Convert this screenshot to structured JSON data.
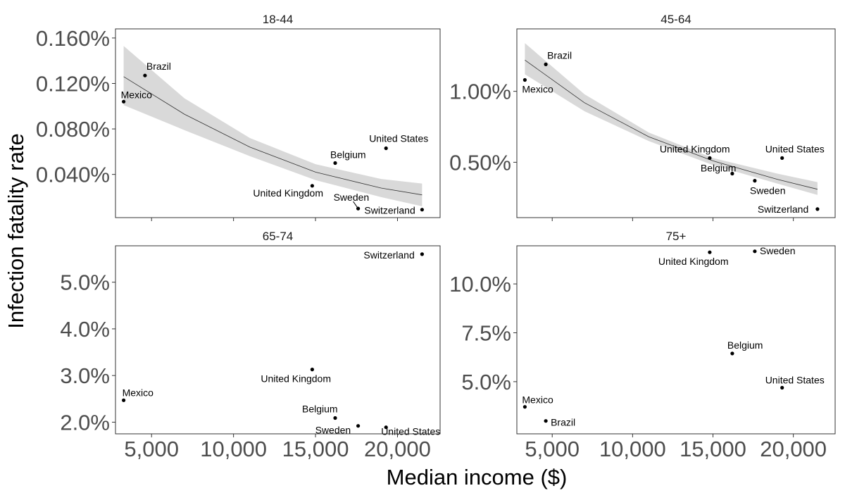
{
  "chart_data": {
    "type": "scatter",
    "xlabel": "Median income ($)",
    "ylabel": "Infection fatality rate",
    "x_ticks": [
      5000,
      10000,
      15000,
      20000
    ],
    "x_tick_labels": [
      "5,000",
      "10,000",
      "15,000",
      "20,000"
    ],
    "xlim": [
      2800,
      22600
    ],
    "grid": false,
    "panels": [
      {
        "title": "18-44",
        "ylim": [
          2e-05,
          0.00168
        ],
        "y_ticks": [
          0.0004,
          0.0008,
          0.0012,
          0.0016
        ],
        "y_tick_labels": [
          "0.040%",
          "0.080%",
          "0.120%",
          "0.160%"
        ],
        "points": [
          {
            "label": "Brazil",
            "x": 4600,
            "y": 0.00127
          },
          {
            "label": "Mexico",
            "x": 3300,
            "y": 0.00104
          },
          {
            "label": "United States",
            "x": 19300,
            "y": 0.00063
          },
          {
            "label": "Belgium",
            "x": 16200,
            "y": 0.0005
          },
          {
            "label": "United Kingdom",
            "x": 14800,
            "y": 0.0003
          },
          {
            "label": "Sweden",
            "x": 17600,
            "y": 0.0001
          },
          {
            "label": "Switzerland",
            "x": 21500,
            "y": 9e-05
          }
        ],
        "fit": {
          "x": [
            3300,
            7000,
            11000,
            15000,
            19000,
            21500
          ],
          "y": [
            0.00126,
            0.00093,
            0.00064,
            0.00042,
            0.00028,
            0.00022
          ],
          "ci_low": [
            0.00101,
            0.00079,
            0.00056,
            0.00035,
            0.0002,
            0.00012
          ],
          "ci_high": [
            0.00153,
            0.00107,
            0.00072,
            0.00049,
            0.00036,
            0.00032
          ]
        }
      },
      {
        "title": "45-64",
        "ylim": [
          0.0011,
          0.0144
        ],
        "y_ticks": [
          0.005,
          0.01
        ],
        "y_tick_labels": [
          "0.50%",
          "1.00%"
        ],
        "points": [
          {
            "label": "Brazil",
            "x": 4600,
            "y": 0.0119
          },
          {
            "label": "Mexico",
            "x": 3300,
            "y": 0.0108
          },
          {
            "label": "United Kingdom",
            "x": 14800,
            "y": 0.0053
          },
          {
            "label": "United States",
            "x": 19300,
            "y": 0.0053
          },
          {
            "label": "Belgium",
            "x": 16200,
            "y": 0.0042
          },
          {
            "label": "Sweden",
            "x": 17600,
            "y": 0.0037
          },
          {
            "label": "Switzerland",
            "x": 21500,
            "y": 0.0017
          }
        ],
        "fit": {
          "x": [
            3300,
            7000,
            11000,
            15000,
            19000,
            21500
          ],
          "y": [
            0.0122,
            0.0092,
            0.0068,
            0.0051,
            0.0038,
            0.0031
          ],
          "ci_low": [
            0.0112,
            0.0086,
            0.0065,
            0.0048,
            0.0035,
            0.0027
          ],
          "ci_high": [
            0.0134,
            0.0098,
            0.0071,
            0.0053,
            0.0042,
            0.0036
          ]
        }
      },
      {
        "title": "65-74",
        "ylim": [
          0.0175,
          0.0578
        ],
        "y_ticks": [
          0.02,
          0.03,
          0.04,
          0.05
        ],
        "y_tick_labels": [
          "2.0%",
          "3.0%",
          "4.0%",
          "5.0%"
        ],
        "points": [
          {
            "label": "Switzerland",
            "x": 21500,
            "y": 0.056
          },
          {
            "label": "United Kingdom",
            "x": 14800,
            "y": 0.0313
          },
          {
            "label": "Mexico",
            "x": 3300,
            "y": 0.0247
          },
          {
            "label": "Belgium",
            "x": 16200,
            "y": 0.0209
          },
          {
            "label": "Sweden",
            "x": 17600,
            "y": 0.0192
          },
          {
            "label": "United States",
            "x": 19300,
            "y": 0.0189
          }
        ]
      },
      {
        "title": "75+",
        "ylim": [
          0.0233,
          0.1195
        ],
        "y_ticks": [
          0.05,
          0.075,
          0.1
        ],
        "y_tick_labels": [
          "5.0%",
          "7.5%",
          "10.0%"
        ],
        "points": [
          {
            "label": "United Kingdom",
            "x": 14800,
            "y": 0.1162
          },
          {
            "label": "Sweden",
            "x": 17600,
            "y": 0.1167
          },
          {
            "label": "Belgium",
            "x": 16200,
            "y": 0.0644
          },
          {
            "label": "United States",
            "x": 19300,
            "y": 0.0469
          },
          {
            "label": "Mexico",
            "x": 3300,
            "y": 0.0371
          },
          {
            "label": "Brazil",
            "x": 4600,
            "y": 0.0299
          }
        ]
      }
    ]
  }
}
